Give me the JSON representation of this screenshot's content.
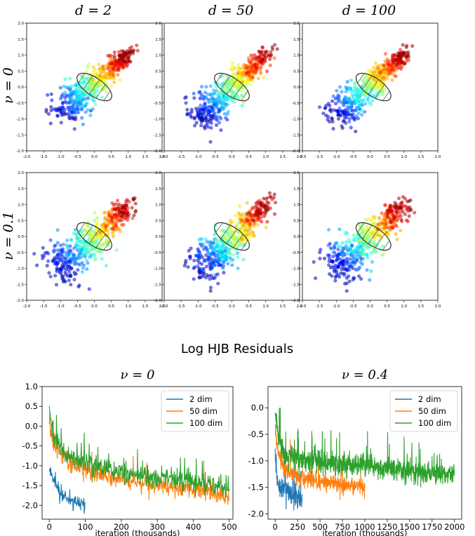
{
  "figure": {
    "top_section": {
      "column_titles": [
        "d = 2",
        "d = 50",
        "d = 100"
      ],
      "row_titles": [
        "ν = 0",
        "ν = 0.1"
      ]
    },
    "bottom_section": {
      "title": "Log HJB Residuals"
    }
  },
  "chart_data": [
    {
      "type": "scatter",
      "title": "d = 2",
      "row_label": "ν = 0",
      "xlim": [
        -2,
        2
      ],
      "ylim": [
        -2,
        2
      ],
      "xticks": [
        "-2.0",
        "-1.5",
        "-1.0",
        "-0.5",
        "0.0",
        "0.5",
        "1.0",
        "1.5",
        "2.0"
      ],
      "yticks": [
        "-2.0",
        "-1.5",
        "-1.0",
        "-0.5",
        "0.0",
        "0.5",
        "1.0",
        "1.5",
        "2.0"
      ],
      "n_points": 500,
      "distribution": {
        "from": [
          -1.1,
          -0.9
        ],
        "to": [
          1.0,
          1.05
        ],
        "spread_along": 0.3,
        "spread_across": 0.22,
        "seed": 11
      },
      "ellipse": {
        "center": [
          0.0,
          0.0
        ],
        "rx": 0.6,
        "ry": 0.28,
        "angle_deg": -35
      },
      "colormap": "jet"
    },
    {
      "type": "scatter",
      "title": "d = 50",
      "row_label": "ν = 0",
      "xlim": [
        -2,
        2
      ],
      "ylim": [
        -2,
        2
      ],
      "xticks": [
        "-2.0",
        "-1.5",
        "-1.0",
        "-0.5",
        "0.0",
        "0.5",
        "1.0",
        "1.5",
        "2.0"
      ],
      "yticks": [
        "-2.0",
        "-1.5",
        "-1.0",
        "-0.5",
        "0.0",
        "0.5",
        "1.0",
        "1.5",
        "2.0"
      ],
      "n_points": 500,
      "distribution": {
        "from": [
          -1.0,
          -1.0
        ],
        "to": [
          1.1,
          1.05
        ],
        "spread_along": 0.3,
        "spread_across": 0.22,
        "seed": 23
      },
      "ellipse": {
        "center": [
          0.0,
          0.0
        ],
        "rx": 0.6,
        "ry": 0.28,
        "angle_deg": -35
      },
      "colormap": "jet"
    },
    {
      "type": "scatter",
      "title": "d = 100",
      "row_label": "ν = 0",
      "xlim": [
        -2,
        2
      ],
      "ylim": [
        -2,
        2
      ],
      "xticks": [
        "-2.0",
        "-1.5",
        "-1.0",
        "-0.5",
        "0.0",
        "0.5",
        "1.0",
        "1.5",
        "2.0"
      ],
      "yticks": [
        "-2.0",
        "-1.5",
        "-1.0",
        "-0.5",
        "0.0",
        "0.5",
        "1.0",
        "1.5",
        "2.0"
      ],
      "n_points": 500,
      "distribution": {
        "from": [
          -1.1,
          -1.0
        ],
        "to": [
          1.05,
          1.05
        ],
        "spread_along": 0.3,
        "spread_across": 0.2,
        "seed": 37
      },
      "ellipse": {
        "center": [
          0.1,
          0.0
        ],
        "rx": 0.6,
        "ry": 0.28,
        "angle_deg": -35
      },
      "colormap": "jet"
    },
    {
      "type": "scatter",
      "title": "d = 2",
      "row_label": "ν = 0.1",
      "xlim": [
        -2,
        2
      ],
      "ylim": [
        -2,
        2
      ],
      "xticks": [
        "-2.0",
        "-1.5",
        "-1.0",
        "-0.5",
        "0.0",
        "0.5",
        "1.0",
        "1.5",
        "2.0"
      ],
      "yticks": [
        "-2.0",
        "-1.5",
        "-1.0",
        "-0.5",
        "0.0",
        "0.5",
        "1.0",
        "1.5",
        "2.0"
      ],
      "n_points": 500,
      "distribution": {
        "from": [
          -1.1,
          -1.1
        ],
        "to": [
          1.0,
          0.95
        ],
        "spread_along": 0.35,
        "spread_across": 0.28,
        "seed": 41
      },
      "ellipse": {
        "center": [
          0.0,
          0.0
        ],
        "rx": 0.6,
        "ry": 0.28,
        "angle_deg": -35
      },
      "colormap": "jet"
    },
    {
      "type": "scatter",
      "title": "d = 50",
      "row_label": "ν = 0.1",
      "xlim": [
        -2,
        2
      ],
      "ylim": [
        -2,
        2
      ],
      "xticks": [
        "-2.0",
        "-1.5",
        "-1.0",
        "-0.5",
        "0.0",
        "0.5",
        "1.0",
        "1.5",
        "2.0"
      ],
      "yticks": [
        "-2.0",
        "-1.5",
        "-1.0",
        "-0.5",
        "0.0",
        "0.5",
        "1.0",
        "1.5",
        "2.0"
      ],
      "n_points": 500,
      "distribution": {
        "from": [
          -1.0,
          -1.1
        ],
        "to": [
          1.05,
          1.0
        ],
        "spread_along": 0.35,
        "spread_across": 0.26,
        "seed": 53
      },
      "ellipse": {
        "center": [
          0.0,
          0.0
        ],
        "rx": 0.6,
        "ry": 0.28,
        "angle_deg": -35
      },
      "colormap": "jet"
    },
    {
      "type": "scatter",
      "title": "d = 100",
      "row_label": "ν = 0.1",
      "xlim": [
        -2,
        2
      ],
      "ylim": [
        -2,
        2
      ],
      "xticks": [
        "-2.0",
        "-1.5",
        "-1.0",
        "-0.5",
        "0.0",
        "0.5",
        "1.0",
        "1.5",
        "2.0"
      ],
      "yticks": [
        "-2.0",
        "-1.5",
        "-1.0",
        "-0.5",
        "0.0",
        "0.5",
        "1.0",
        "1.5",
        "2.0"
      ],
      "n_points": 500,
      "distribution": {
        "from": [
          -1.1,
          -1.1
        ],
        "to": [
          1.0,
          0.95
        ],
        "spread_along": 0.35,
        "spread_across": 0.26,
        "seed": 67
      },
      "ellipse": {
        "center": [
          0.1,
          0.0
        ],
        "rx": 0.6,
        "ry": 0.28,
        "angle_deg": -35
      },
      "colormap": "jet"
    },
    {
      "type": "line",
      "title": "ν = 0",
      "xlabel": "iteration (thousands)",
      "ylabel": "",
      "xlim": [
        -20,
        510
      ],
      "ylim": [
        -2.35,
        1.0
      ],
      "xticks": [
        0,
        100,
        200,
        300,
        400,
        500
      ],
      "yticks": [
        -2.0,
        -1.5,
        -1.0,
        -0.5,
        0.0,
        0.5,
        1.0
      ],
      "legend": "top-right",
      "series": [
        {
          "name": "2 dim",
          "color": "#1f77b4",
          "x_max": 100,
          "trend": [
            [
              0,
              -1.0
            ],
            [
              5,
              -1.25
            ],
            [
              15,
              -1.5
            ],
            [
              40,
              -1.75
            ],
            [
              70,
              -1.9
            ],
            [
              100,
              -2.0
            ]
          ],
          "noise": 0.1,
          "spikes": 0.02,
          "step": 1,
          "seed": 101
        },
        {
          "name": "50 dim",
          "color": "#ff7f0e",
          "x_max": 500,
          "trend": [
            [
              0,
              0.2
            ],
            [
              5,
              -0.2
            ],
            [
              15,
              -0.5
            ],
            [
              50,
              -0.9
            ],
            [
              100,
              -1.1
            ],
            [
              150,
              -1.25
            ],
            [
              200,
              -1.35
            ],
            [
              300,
              -1.5
            ],
            [
              400,
              -1.6
            ],
            [
              500,
              -1.75
            ]
          ],
          "noise": 0.12,
          "spikes": 0.03,
          "step": 1,
          "seed": 202
        },
        {
          "name": "100 dim",
          "color": "#2ca02c",
          "x_max": 500,
          "trend": [
            [
              0,
              0.5
            ],
            [
              5,
              0.1
            ],
            [
              15,
              -0.3
            ],
            [
              50,
              -0.75
            ],
            [
              100,
              -0.95
            ],
            [
              200,
              -1.15
            ],
            [
              300,
              -1.3
            ],
            [
              400,
              -1.4
            ],
            [
              500,
              -1.55
            ]
          ],
          "noise": 0.13,
          "spikes": 0.045,
          "step": 1,
          "seed": 303
        }
      ]
    },
    {
      "type": "line",
      "title": "ν = 0.4",
      "xlabel": "iteration (thousands)",
      "ylabel": "",
      "xlim": [
        -80,
        2080
      ],
      "ylim": [
        -2.1,
        0.4
      ],
      "xticks": [
        0,
        250,
        500,
        750,
        1000,
        1250,
        1500,
        1750,
        2000
      ],
      "yticks": [
        -2.0,
        -1.5,
        -1.0,
        -0.5,
        0.0
      ],
      "legend": "top-right",
      "series": [
        {
          "name": "2 dim",
          "color": "#1f77b4",
          "x_max": 300,
          "trend": [
            [
              0,
              -0.9
            ],
            [
              20,
              -1.3
            ],
            [
              60,
              -1.5
            ],
            [
              150,
              -1.6
            ],
            [
              300,
              -1.7
            ]
          ],
          "noise": 0.11,
          "spikes": 0.02,
          "step": 2,
          "seed": 404
        },
        {
          "name": "50 dim",
          "color": "#ff7f0e",
          "x_max": 1000,
          "trend": [
            [
              0,
              -0.4
            ],
            [
              30,
              -0.8
            ],
            [
              100,
              -1.15
            ],
            [
              250,
              -1.3
            ],
            [
              500,
              -1.4
            ],
            [
              750,
              -1.45
            ],
            [
              1000,
              -1.5
            ]
          ],
          "noise": 0.08,
          "spikes": 0.02,
          "step": 2,
          "seed": 505
        },
        {
          "name": "100 dim",
          "color": "#2ca02c",
          "x_max": 2000,
          "trend": [
            [
              0,
              -0.1
            ],
            [
              30,
              -0.5
            ],
            [
              100,
              -0.85
            ],
            [
              300,
              -1.0
            ],
            [
              1000,
              -1.1
            ],
            [
              1500,
              -1.2
            ],
            [
              2000,
              -1.25
            ]
          ],
          "noise": 0.1,
          "spikes": 0.035,
          "step": 2,
          "seed": 606
        }
      ]
    }
  ]
}
